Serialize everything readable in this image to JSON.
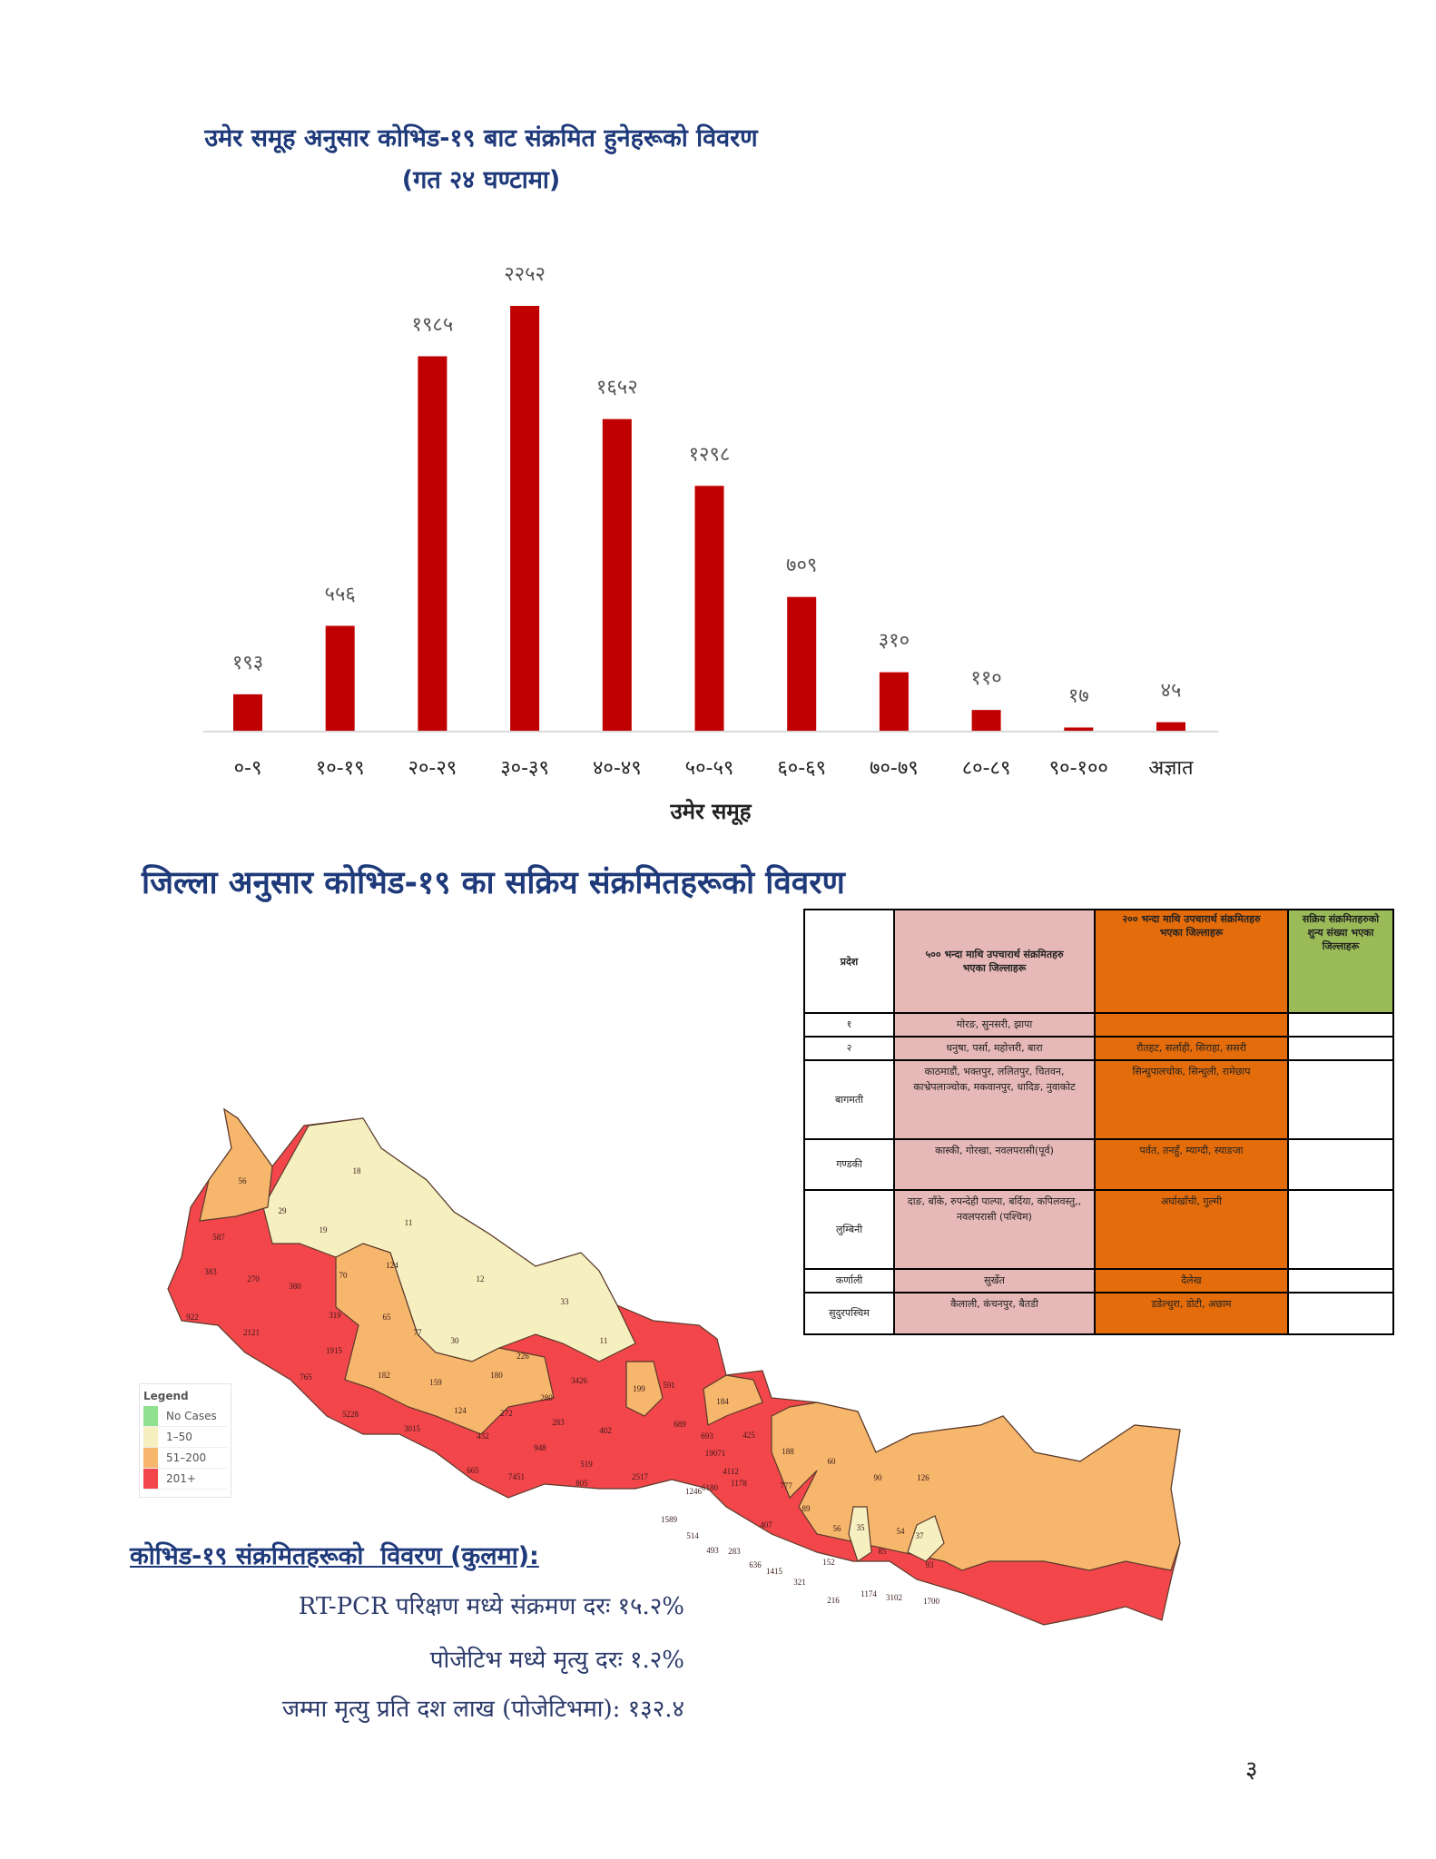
{
  "chart_section": {
    "title_line1": "उमेर समूह अनुसार कोभिड-१९ बाट संक्रमित हुनेहरूको विवरण",
    "title_line2": "(गत २४ घण्टामा)"
  },
  "chart_data": {
    "type": "bar",
    "title": "उमेर समूह अनुसार कोभिड-१९ बाट संक्रमित हुनेहरूको विवरण (गत २४ घण्टामा)",
    "xlabel": "उमेर समूह",
    "ylabel": "",
    "categories": [
      "०-९",
      "१०-१९",
      "२०-२९",
      "३०-३९",
      "४०-४९",
      "५०-५९",
      "६०-६९",
      "७०-७९",
      "८०-८९",
      "९०-१००",
      "अज्ञात"
    ],
    "values": [
      193,
      556,
      1985,
      2252,
      1652,
      1298,
      709,
      310,
      110,
      17,
      45
    ],
    "data_labels": [
      "१९३",
      "५५६",
      "१९८५",
      "२२५२",
      "१६५२",
      "१२९८",
      "७०९",
      "३१०",
      "११०",
      "१७",
      "४५"
    ],
    "bar_color": "#c00000",
    "grid": false,
    "legend": "none"
  },
  "district_section": {
    "title": "जिल्ला अनुसार कोभिड-१९ का सक्रिय संक्रमितहरूको विवरण"
  },
  "table": {
    "headers": [
      "प्रदेश",
      "५०० भन्दा माथि उपचारार्थ संक्रमितहरु भएका जिल्लाहरू",
      "२०० भन्दा माथि उपचारार्थ संक्रमितहरु भएका जिल्लाहरू",
      "सक्रिय संक्रमितहरुको शुन्य संख्या भएका जिल्लाहरू"
    ],
    "rows": [
      {
        "province": "१",
        "above500": "मोरङ, सुनसरी, झापा",
        "above200": "",
        "zero": ""
      },
      {
        "province": "२",
        "above500": "धनुषा, पर्सा, महोत्तरी, बारा",
        "above200": "रौतहट, सर्लाही, सिराहा, ससरी",
        "zero": ""
      },
      {
        "province": "बागमती",
        "above500": "काठमाडौं, भक्तपुर, ललितपुर, चितवन, काभ्रेपलाञ्चोक, मकवानपुर, धादिङ, नुवाकोट",
        "above200": "सिन्धुपालचोक, सिन्धुली, रामेछाप",
        "zero": ""
      },
      {
        "province": "गण्डकी",
        "above500": "कास्की, गोरखा, नवलपरासी(पूर्व)",
        "above200": "पर्वत, तनहुँ, म्याग्दी, स्याङजा",
        "zero": ""
      },
      {
        "province": "लुम्बिनी",
        "above500": "दाङ, बाँके, रुपन्देही पाल्पा, बर्दिया, कपिलवस्तु,, नवलपरासी (पश्चिम)",
        "above200": "अर्घाखाँची, गुल्मी",
        "zero": ""
      },
      {
        "province": "कर्णाली",
        "above500": "सुर्खेत",
        "above200": "दैलेख",
        "zero": ""
      },
      {
        "province": "सुदुरपस्चिम",
        "above500": "कैलाली, कंचनपुर, बैतडी",
        "above200": "डडेल्धुरा, डोटी, अछाम",
        "zero": ""
      }
    ],
    "colors": {
      "above500": "#e6b8b7",
      "above200": "#e46c0a",
      "zero": "#9bbb59"
    }
  },
  "map": {
    "legend": {
      "title": "Legend",
      "items": [
        {
          "label": "No Cases",
          "color": "#8fe08f"
        },
        {
          "label": "1–50",
          "color": "#f6f0c0"
        },
        {
          "label": "51–200",
          "color": "#f6b66c"
        },
        {
          "label": "201+",
          "color": "#f2464b"
        }
      ]
    },
    "district_values": [
      "56",
      "18",
      "29",
      "19",
      "11",
      "587",
      "383",
      "270",
      "380",
      "70",
      "124",
      "12",
      "33",
      "922",
      "2121",
      "319",
      "65",
      "77",
      "30",
      "11",
      "1915",
      "226",
      "765",
      "182",
      "159",
      "180",
      "3426",
      "280",
      "5228",
      "124",
      "272",
      "283",
      "402",
      "3015",
      "432",
      "948",
      "519",
      "665",
      "7451",
      "805",
      "2517",
      "199",
      "591",
      "184",
      "689",
      "693",
      "425",
      "19071",
      "4112",
      "1178",
      "1246",
      "6180",
      "188",
      "60",
      "90",
      "126",
      "777",
      "89",
      "56",
      "35",
      "54",
      "37",
      "85",
      "93",
      "152",
      "407",
      "1589",
      "514",
      "493",
      "283",
      "636",
      "1415",
      "321",
      "216",
      "1174",
      "3102",
      "1700"
    ]
  },
  "summary": {
    "heading": "कोभिड-१९ संक्रमितहरूको  विवरण (कुलमा):",
    "stats": [
      "RT-PCR परिक्षण मध्ये संक्रमण दरः १५.२%",
      "पोजेटिभ मध्ये मृत्यु दरः १.२%",
      "जम्मा मृत्यु प्रति दश लाख (पोजेटिभमा): १३२.४"
    ]
  },
  "page_number": "३"
}
